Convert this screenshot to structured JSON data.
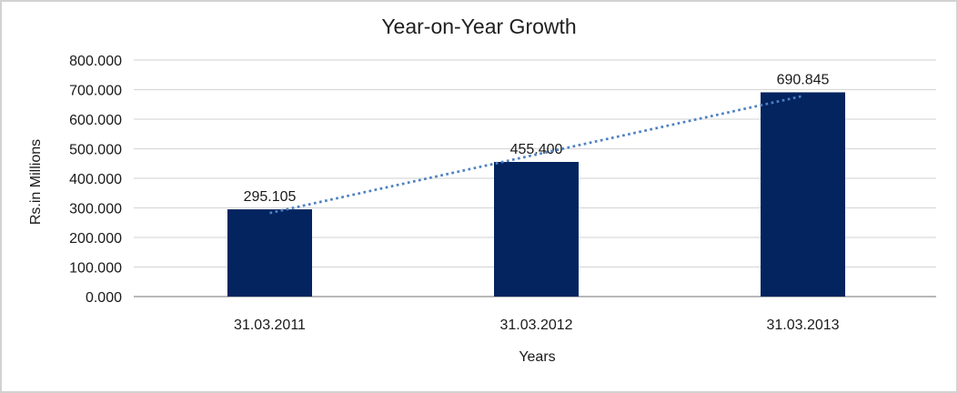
{
  "chart_data": {
    "type": "bar",
    "title": "Year-on-Year Growth",
    "xlabel": "Years",
    "ylabel": "Rs.in Millions",
    "categories": [
      "31.03.2011",
      "31.03.2012",
      "31.03.2013"
    ],
    "values": [
      295.105,
      455.4,
      690.845
    ],
    "data_labels": [
      "295.105",
      "455.400",
      "690.845"
    ],
    "ylim": [
      0,
      800
    ],
    "ytick_step": 100,
    "ytick_labels": [
      "0.000",
      "100.000",
      "200.000",
      "300.000",
      "400.000",
      "500.000",
      "600.000",
      "700.000",
      "800.000"
    ],
    "grid": true,
    "legend": "none",
    "trendline": {
      "type": "linear",
      "style": "dotted"
    },
    "colors": {
      "bar": "#03245f",
      "trendline": "#4e81c2",
      "gridline": "#d9d9d9",
      "axis_line": "#a0a0a0",
      "text": "#1a1a1a",
      "frame_border": "#d2d2d2",
      "background": "#ffffff"
    }
  }
}
